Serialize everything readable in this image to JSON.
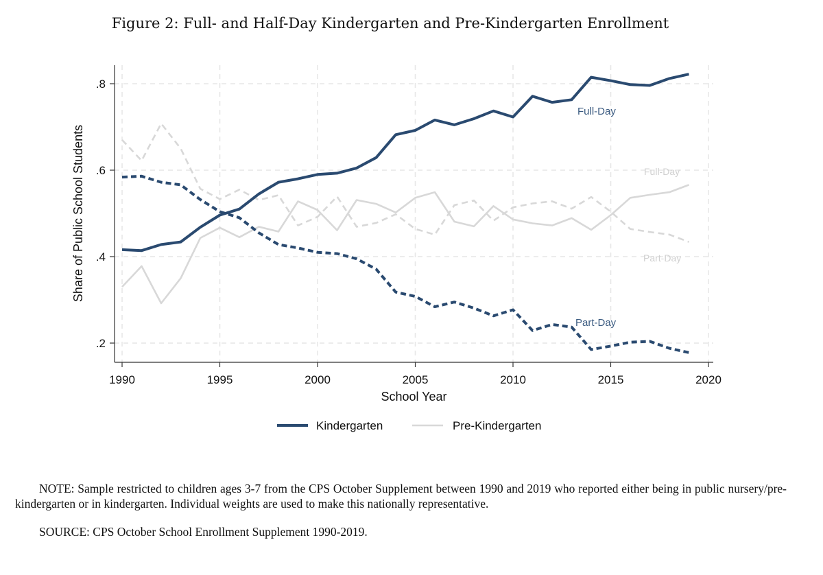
{
  "figure_title": "Figure 2: Full- and Half-Day Kindergarten and Pre-Kindergarten Enrollment",
  "note": "NOTE: Sample restricted to children ages 3-7 from the CPS October Supplement between 1990 and 2019 who reported either being in public nursery/pre-kindergarten or in kindergarten. Individual weights are used to make this nationally representative.",
  "source": "SOURCE: CPS October School Enrollment Supplement 1990-2019.",
  "colors": {
    "kindergarten": "#2a4a70",
    "pre_kindergarten": "#d8d8d8",
    "axis": "#333333",
    "grid": "#e6e6e6"
  },
  "chart_data": {
    "type": "line",
    "title": "Figure 2: Full- and Half-Day Kindergarten and Pre-Kindergarten Enrollment",
    "xlabel": "School Year",
    "ylabel": "Share of Public School Students",
    "xlim": [
      1990,
      2020
    ],
    "ylim": [
      0.18,
      0.82
    ],
    "xticks": [
      1990,
      1995,
      2000,
      2005,
      2010,
      2015,
      2020
    ],
    "xtick_labels": [
      "1990",
      "1995",
      "2000",
      "2005",
      "2010",
      "2015",
      "2020"
    ],
    "yticks": [
      0.2,
      0.4,
      0.6,
      0.8
    ],
    "ytick_labels": [
      ".2",
      ".4",
      ".6",
      ".8"
    ],
    "grid": true,
    "legend": [
      "Kindergarten",
      "Pre-Kindergarten"
    ],
    "legend_position": "bottom",
    "x": [
      1990,
      1991,
      1992,
      1993,
      1994,
      1995,
      1996,
      1997,
      1998,
      1999,
      2000,
      2001,
      2002,
      2003,
      2004,
      2005,
      2006,
      2007,
      2008,
      2009,
      2010,
      2011,
      2012,
      2013,
      2014,
      2015,
      2016,
      2017,
      2018,
      2019
    ],
    "series": [
      {
        "name": "Kindergarten Full-Day",
        "group": "Kindergarten",
        "style": "solid",
        "label": "Full-Day",
        "values": [
          0.416,
          0.414,
          0.428,
          0.434,
          0.468,
          0.496,
          0.51,
          0.545,
          0.572,
          0.58,
          0.59,
          0.593,
          0.605,
          0.629,
          0.682,
          0.692,
          0.716,
          0.705,
          0.719,
          0.737,
          0.723,
          0.771,
          0.757,
          0.763,
          0.815,
          0.807,
          0.798,
          0.796,
          0.812,
          0.822
        ]
      },
      {
        "name": "Kindergarten Part-Day",
        "group": "Kindergarten",
        "style": "dashed",
        "label": "Part-Day",
        "values": [
          0.584,
          0.586,
          0.572,
          0.566,
          0.532,
          0.504,
          0.49,
          0.455,
          0.428,
          0.42,
          0.41,
          0.407,
          0.395,
          0.371,
          0.318,
          0.308,
          0.284,
          0.295,
          0.281,
          0.263,
          0.277,
          0.229,
          0.243,
          0.237,
          0.185,
          0.193,
          0.202,
          0.204,
          0.188,
          0.178
        ]
      },
      {
        "name": "Pre-Kindergarten Full-Day",
        "group": "Pre-Kindergarten",
        "style": "solid",
        "label": "Full-Day",
        "values": [
          0.33,
          0.378,
          0.292,
          0.35,
          0.443,
          0.467,
          0.445,
          0.469,
          0.458,
          0.528,
          0.508,
          0.461,
          0.531,
          0.522,
          0.502,
          0.536,
          0.549,
          0.481,
          0.47,
          0.517,
          0.486,
          0.477,
          0.472,
          0.489,
          0.462,
          0.496,
          0.536,
          0.543,
          0.549,
          0.566
        ]
      },
      {
        "name": "Pre-Kindergarten Part-Day",
        "group": "Pre-Kindergarten",
        "style": "dashed",
        "label": "Part-Day",
        "values": [
          0.67,
          0.622,
          0.708,
          0.65,
          0.557,
          0.533,
          0.555,
          0.531,
          0.542,
          0.472,
          0.492,
          0.539,
          0.469,
          0.478,
          0.498,
          0.464,
          0.451,
          0.519,
          0.53,
          0.483,
          0.514,
          0.523,
          0.528,
          0.511,
          0.538,
          0.504,
          0.464,
          0.457,
          0.451,
          0.434
        ]
      }
    ]
  }
}
